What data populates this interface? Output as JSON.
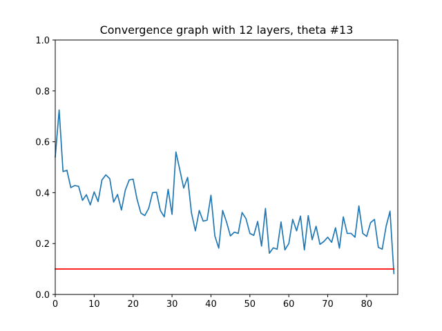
{
  "chart_data": {
    "type": "line",
    "title": "Convergence graph with 12 layers, theta #13",
    "xlabel": "",
    "ylabel": "",
    "xlim": [
      0,
      88
    ],
    "ylim": [
      0.0,
      1.0
    ],
    "x_ticks": [
      0,
      10,
      20,
      30,
      40,
      50,
      60,
      70,
      80
    ],
    "x_tick_labels": [
      "0",
      "10",
      "20",
      "30",
      "40",
      "50",
      "60",
      "70",
      "80"
    ],
    "y_ticks": [
      0.0,
      0.2,
      0.4,
      0.6,
      0.8,
      1.0
    ],
    "y_tick_labels": [
      "0.0",
      "0.2",
      "0.4",
      "0.6",
      "0.8",
      "1.0"
    ],
    "grid": false,
    "series": [
      {
        "color": "#1f77b4",
        "x": [
          0,
          1,
          2,
          3,
          4,
          5,
          6,
          7,
          8,
          9,
          10,
          11,
          12,
          13,
          14,
          15,
          16,
          17,
          18,
          19,
          20,
          21,
          22,
          23,
          24,
          25,
          26,
          27,
          28,
          29,
          30,
          31,
          32,
          33,
          34,
          35,
          36,
          37,
          38,
          39,
          40,
          41,
          42,
          43,
          44,
          45,
          46,
          47,
          48,
          49,
          50,
          51,
          52,
          53,
          54,
          55,
          56,
          57,
          58,
          59,
          60,
          61,
          62,
          63,
          64,
          65,
          66,
          67,
          68,
          69,
          70,
          71,
          72,
          73,
          74,
          75,
          76,
          77,
          78,
          79,
          80,
          81,
          82,
          83,
          84,
          85,
          86,
          87
        ],
        "y": [
          0.54,
          0.725,
          0.483,
          0.488,
          0.42,
          0.428,
          0.425,
          0.37,
          0.392,
          0.352,
          0.403,
          0.365,
          0.45,
          0.47,
          0.455,
          0.363,
          0.393,
          0.332,
          0.41,
          0.45,
          0.453,
          0.375,
          0.32,
          0.31,
          0.338,
          0.4,
          0.402,
          0.33,
          0.305,
          0.413,
          0.315,
          0.56,
          0.49,
          0.418,
          0.46,
          0.32,
          0.25,
          0.33,
          0.288,
          0.292,
          0.39,
          0.23,
          0.182,
          0.33,
          0.285,
          0.23,
          0.245,
          0.24,
          0.322,
          0.298,
          0.24,
          0.232,
          0.287,
          0.19,
          0.338,
          0.162,
          0.183,
          0.178,
          0.285,
          0.175,
          0.2,
          0.295,
          0.25,
          0.308,
          0.175,
          0.31,
          0.215,
          0.268,
          0.197,
          0.208,
          0.225,
          0.205,
          0.262,
          0.182,
          0.305,
          0.24,
          0.24,
          0.225,
          0.348,
          0.24,
          0.228,
          0.282,
          0.295,
          0.185,
          0.178,
          0.268,
          0.327,
          0.082
        ]
      },
      {
        "color": "#ff0000",
        "x": [
          0,
          87
        ],
        "y": [
          0.1,
          0.1
        ]
      }
    ]
  }
}
